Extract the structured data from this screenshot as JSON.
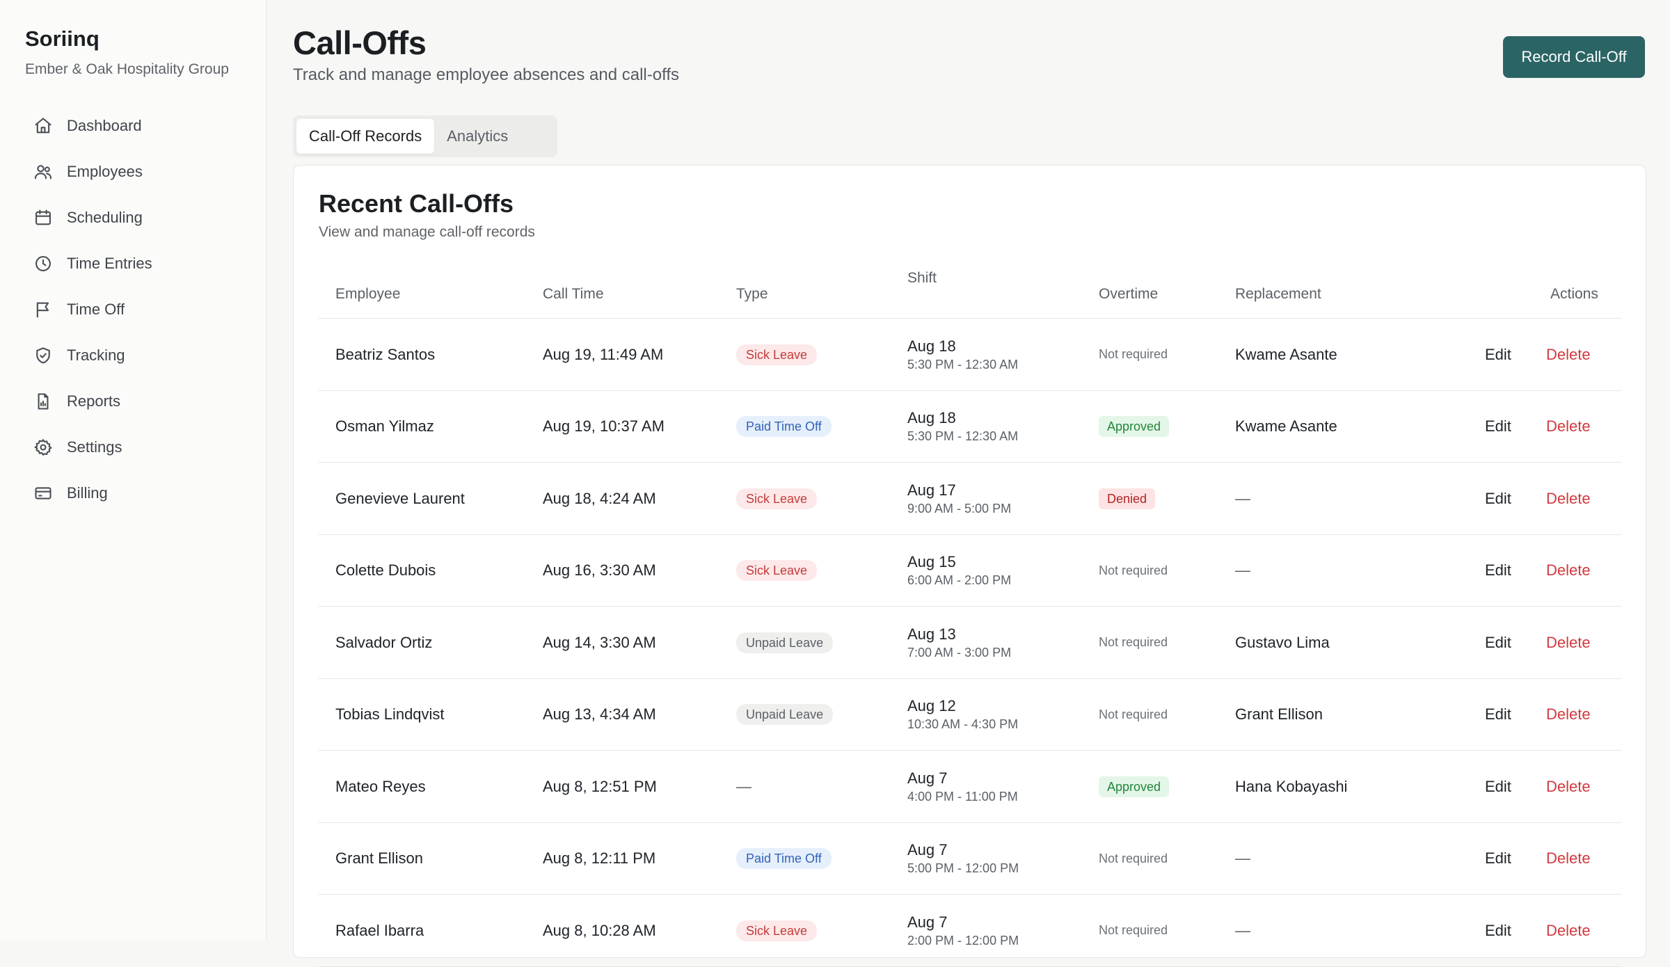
{
  "app": {
    "name": "Soriinq",
    "org": "Ember & Oak Hospitality Group"
  },
  "nav": [
    {
      "label": "Dashboard",
      "icon": "home-icon"
    },
    {
      "label": "Employees",
      "icon": "users-icon"
    },
    {
      "label": "Scheduling",
      "icon": "calendar-icon"
    },
    {
      "label": "Time Entries",
      "icon": "clock-icon"
    },
    {
      "label": "Time Off",
      "icon": "flag-icon"
    },
    {
      "label": "Tracking",
      "icon": "shield-icon"
    },
    {
      "label": "Reports",
      "icon": "report-icon"
    },
    {
      "label": "Settings",
      "icon": "gear-icon"
    },
    {
      "label": "Billing",
      "icon": "card-icon"
    }
  ],
  "header": {
    "title": "Call-Offs",
    "subtitle": "Track and manage employee absences and call-offs",
    "primary_action": "Record Call-Off"
  },
  "tabs": [
    {
      "label": "Call-Off Records",
      "active": true
    },
    {
      "label": "Analytics",
      "active": false
    }
  ],
  "card": {
    "title": "Recent Call-Offs",
    "subtitle": "View and manage call-off records"
  },
  "table": {
    "columns": [
      "Employee",
      "Call Time",
      "Type",
      "Shift",
      "Overtime",
      "Replacement",
      "Actions"
    ],
    "edit_label": "Edit",
    "delete_label": "Delete",
    "rows": [
      {
        "employee": "Beatriz Santos",
        "call_time": "Aug 19, 11:49 AM",
        "type": "Sick Leave",
        "type_kind": "sick",
        "shift_date": "Aug 18",
        "shift_time": "5:30 PM - 12:30 AM",
        "overtime": "Not required",
        "overtime_kind": "plain",
        "replacement": "Kwame Asante"
      },
      {
        "employee": "Osman Yilmaz",
        "call_time": "Aug 19, 10:37 AM",
        "type": "Paid Time Off",
        "type_kind": "pto",
        "shift_date": "Aug 18",
        "shift_time": "5:30 PM - 12:30 AM",
        "overtime": "Approved",
        "overtime_kind": "approved",
        "replacement": "Kwame Asante"
      },
      {
        "employee": "Genevieve Laurent",
        "call_time": "Aug 18, 4:24 AM",
        "type": "Sick Leave",
        "type_kind": "sick",
        "shift_date": "Aug 17",
        "shift_time": "9:00 AM - 5:00 PM",
        "overtime": "Denied",
        "overtime_kind": "denied",
        "replacement": "—"
      },
      {
        "employee": "Colette Dubois",
        "call_time": "Aug 16, 3:30 AM",
        "type": "Sick Leave",
        "type_kind": "sick",
        "shift_date": "Aug 15",
        "shift_time": "6:00 AM - 2:00 PM",
        "overtime": "Not required",
        "overtime_kind": "plain",
        "replacement": "—"
      },
      {
        "employee": "Salvador Ortiz",
        "call_time": "Aug 14, 3:30 AM",
        "type": "Unpaid Leave",
        "type_kind": "unpaid",
        "shift_date": "Aug 13",
        "shift_time": "7:00 AM - 3:00 PM",
        "overtime": "Not required",
        "overtime_kind": "plain",
        "replacement": "Gustavo Lima"
      },
      {
        "employee": "Tobias Lindqvist",
        "call_time": "Aug 13, 4:34 AM",
        "type": "Unpaid Leave",
        "type_kind": "unpaid",
        "shift_date": "Aug 12",
        "shift_time": "10:30 AM - 4:30 PM",
        "overtime": "Not required",
        "overtime_kind": "plain",
        "replacement": "Grant Ellison"
      },
      {
        "employee": "Mateo Reyes",
        "call_time": "Aug 8, 12:51 PM",
        "type": "—",
        "type_kind": "none",
        "shift_date": "Aug 7",
        "shift_time": "4:00 PM - 11:00 PM",
        "overtime": "Approved",
        "overtime_kind": "approved",
        "replacement": "Hana Kobayashi"
      },
      {
        "employee": "Grant Ellison",
        "call_time": "Aug 8, 12:11 PM",
        "type": "Paid Time Off",
        "type_kind": "pto",
        "shift_date": "Aug 7",
        "shift_time": "5:00 PM - 12:00 PM",
        "overtime": "Not required",
        "overtime_kind": "plain",
        "replacement": "—"
      },
      {
        "employee": "Rafael Ibarra",
        "call_time": "Aug 8, 10:28 AM",
        "type": "Sick Leave",
        "type_kind": "sick",
        "shift_date": "Aug 7",
        "shift_time": "2:00 PM - 12:00 PM",
        "overtime": "Not required",
        "overtime_kind": "plain",
        "replacement": "—"
      }
    ]
  },
  "colors": {
    "primary": "#2b6465",
    "danger": "#d0393f"
  }
}
